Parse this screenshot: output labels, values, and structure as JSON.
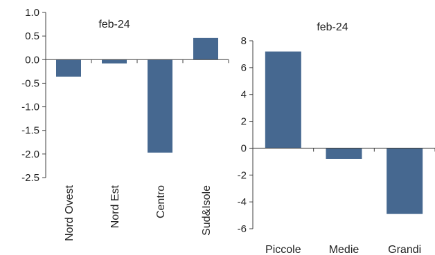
{
  "colors": {
    "bar": "#466890",
    "axis": "#404040",
    "text": "#222222"
  },
  "chart_data": [
    {
      "type": "bar",
      "title": "feb-24",
      "categories": [
        "Nord Ovest",
        "Nord Est",
        "Centro",
        "Sud&Isole"
      ],
      "values": [
        -0.36,
        -0.08,
        -1.97,
        0.46
      ],
      "ylim": [
        -2.5,
        1.0
      ],
      "yticks": [
        1.0,
        0.5,
        0.0,
        -0.5,
        -1.0,
        -1.5,
        -2.0,
        -2.5
      ],
      "ytick_labels": [
        "1.0",
        "0.5",
        "0.0",
        "-0.5",
        "-1.0",
        "-1.5",
        "-2.0",
        "-2.5"
      ],
      "xlabel": "",
      "ylabel": "",
      "category_label_orientation": "vertical",
      "grid": false,
      "legend": "none"
    },
    {
      "type": "bar",
      "title": "feb-24",
      "categories": [
        "Piccole",
        "Medie",
        "Grandi"
      ],
      "values": [
        7.2,
        -0.8,
        -4.9
      ],
      "ylim": [
        -6,
        8
      ],
      "yticks": [
        8,
        6,
        4,
        2,
        0,
        -2,
        -4,
        -6
      ],
      "ytick_labels": [
        "8",
        "6",
        "4",
        "2",
        "0",
        "-2",
        "-4",
        "-6"
      ],
      "xlabel": "",
      "ylabel": "",
      "category_label_orientation": "horizontal",
      "grid": false,
      "legend": "none"
    }
  ]
}
